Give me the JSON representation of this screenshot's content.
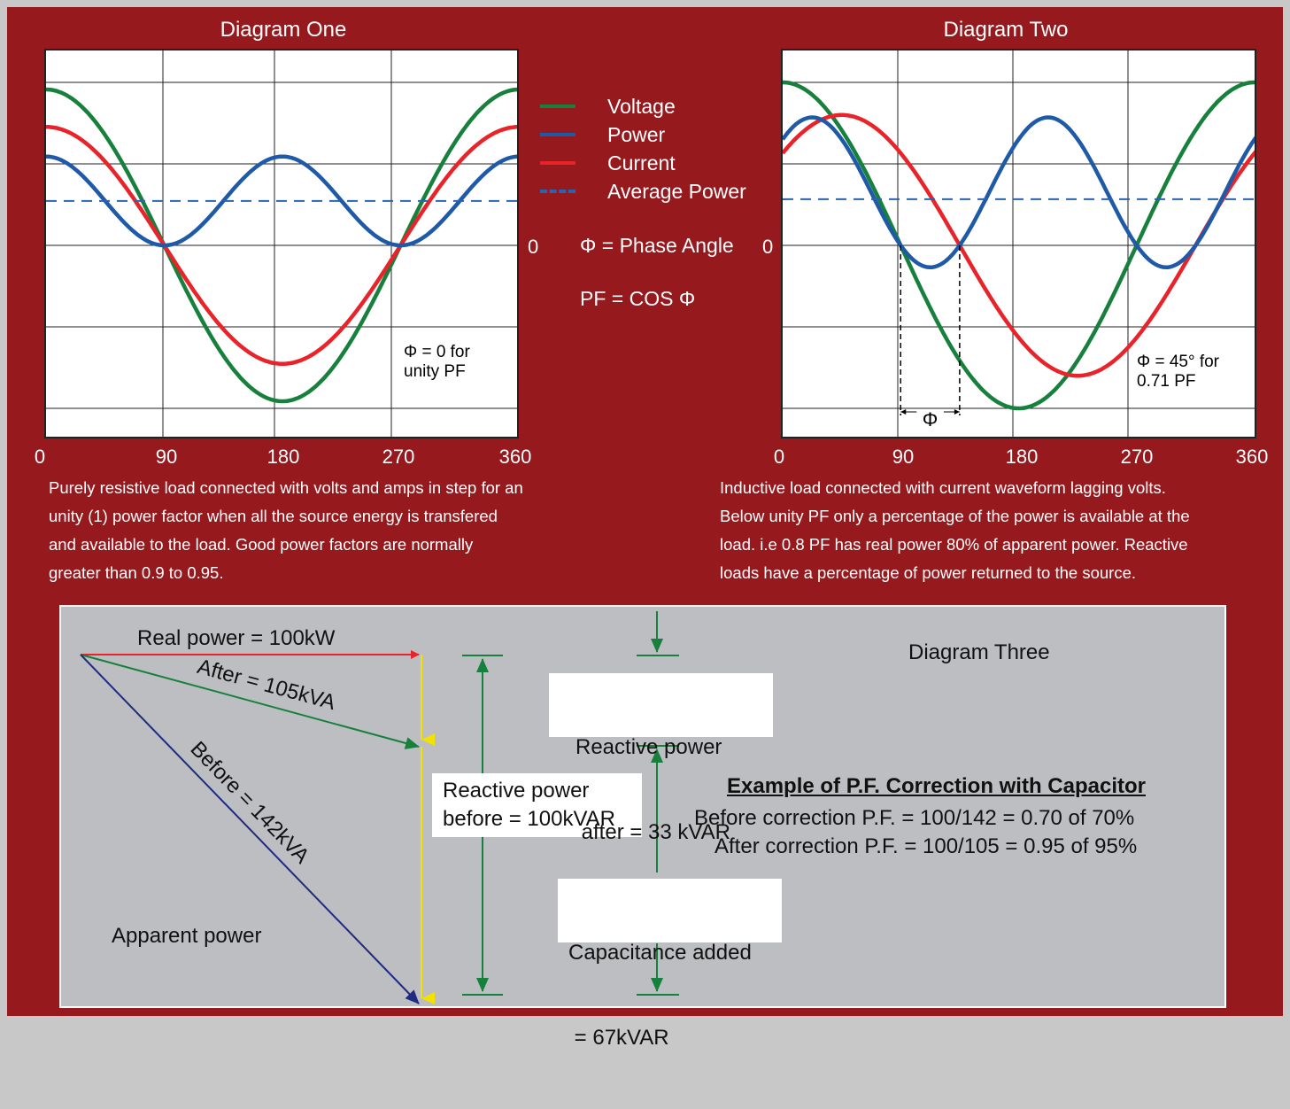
{
  "diagram_one": {
    "title": "Diagram One",
    "zero_label": "0",
    "x_ticks": [
      "0",
      "90",
      "180",
      "270",
      "360"
    ],
    "note_line1": "Φ = 0 for",
    "note_line2": "unity PF",
    "caption": [
      "Purely resistive load connected with volts and amps in step for an",
      "unity (1) power factor when all the source energy is transfered",
      "and available to the load.  Good power factors are normally",
      "greater than 0.9 to 0.95."
    ]
  },
  "diagram_two": {
    "title": "Diagram Two",
    "zero_label": "0",
    "x_ticks": [
      "0",
      "90",
      "180",
      "270",
      "360"
    ],
    "phi_label": "Φ",
    "note_line1": "Φ = 45° for",
    "note_line2": "0.71 PF",
    "caption": [
      "Inductive load connected with current waveform lagging volts.",
      "Below unity PF only a percentage of the power is available at the",
      "load. i.e 0.8 PF  has real power 80% of apparent power. Reactive",
      "loads have a percentage of power returned to the source."
    ]
  },
  "legend": {
    "items": [
      {
        "label": "Voltage",
        "color": "#16803c",
        "style": "solid"
      },
      {
        "label": "Power",
        "color": "#1f5aa8",
        "style": "solid"
      },
      {
        "label": "Current",
        "color": "#e8232a",
        "style": "solid"
      },
      {
        "label": "Average Power",
        "color": "#2a63b0",
        "style": "dashed"
      }
    ],
    "phase_angle": "Φ = Phase Angle",
    "pf_formula": "PF = COS Φ"
  },
  "diagram_three": {
    "title": "Diagram Three",
    "real_power": "Real power = 100kW",
    "after": "After = 105kVA",
    "before": "Before = 142kVA",
    "apparent_power": "Apparent power",
    "reactive_before_line1": "Reactive power",
    "reactive_before_line2": "before = 100kVAR",
    "reactive_after_line1": "Reactive power",
    "reactive_after_line2": " after = 33 kVAR",
    "capacitance_line1": "Capacitance added",
    "capacitance_line2": " = 67kVAR",
    "example_title": "Example of P.F. Correction with Capacitor",
    "before_correction": "Before correction P.F. = 100/142 = 0.70 of 70%",
    "after_correction": "After correction P.F. = 100/105 = 0.95 of 95%",
    "colors": {
      "real": "#e8232a",
      "after": "#16803c",
      "before": "#1f2a80",
      "reactive": "#f2e200",
      "dimension": "#16803c"
    }
  },
  "chart_data": [
    {
      "type": "line",
      "title": "Diagram One",
      "x": [
        0,
        90,
        180,
        270,
        360
      ],
      "series": [
        {
          "name": "Voltage",
          "function": "cos(x)",
          "amplitude": 1.0
        },
        {
          "name": "Current",
          "function": "cos(x)",
          "amplitude": 0.76
        },
        {
          "name": "Power",
          "function": "cos(x)^2",
          "amplitude": 0.57
        },
        {
          "name": "Average Power",
          "constant": 0.285
        }
      ],
      "phase_angle_deg": 0
    },
    {
      "type": "line",
      "title": "Diagram Two",
      "x": [
        0,
        90,
        180,
        270,
        360
      ],
      "series": [
        {
          "name": "Voltage",
          "function": "cos(x)",
          "amplitude": 1.0
        },
        {
          "name": "Current",
          "function": "cos(x-45)",
          "amplitude": 0.8
        },
        {
          "name": "Power",
          "function": "cos(x)*cos(x-45)",
          "amplitude": 0.8
        },
        {
          "name": "Average Power",
          "constant": 0.283
        }
      ],
      "phase_angle_deg": 45
    }
  ]
}
